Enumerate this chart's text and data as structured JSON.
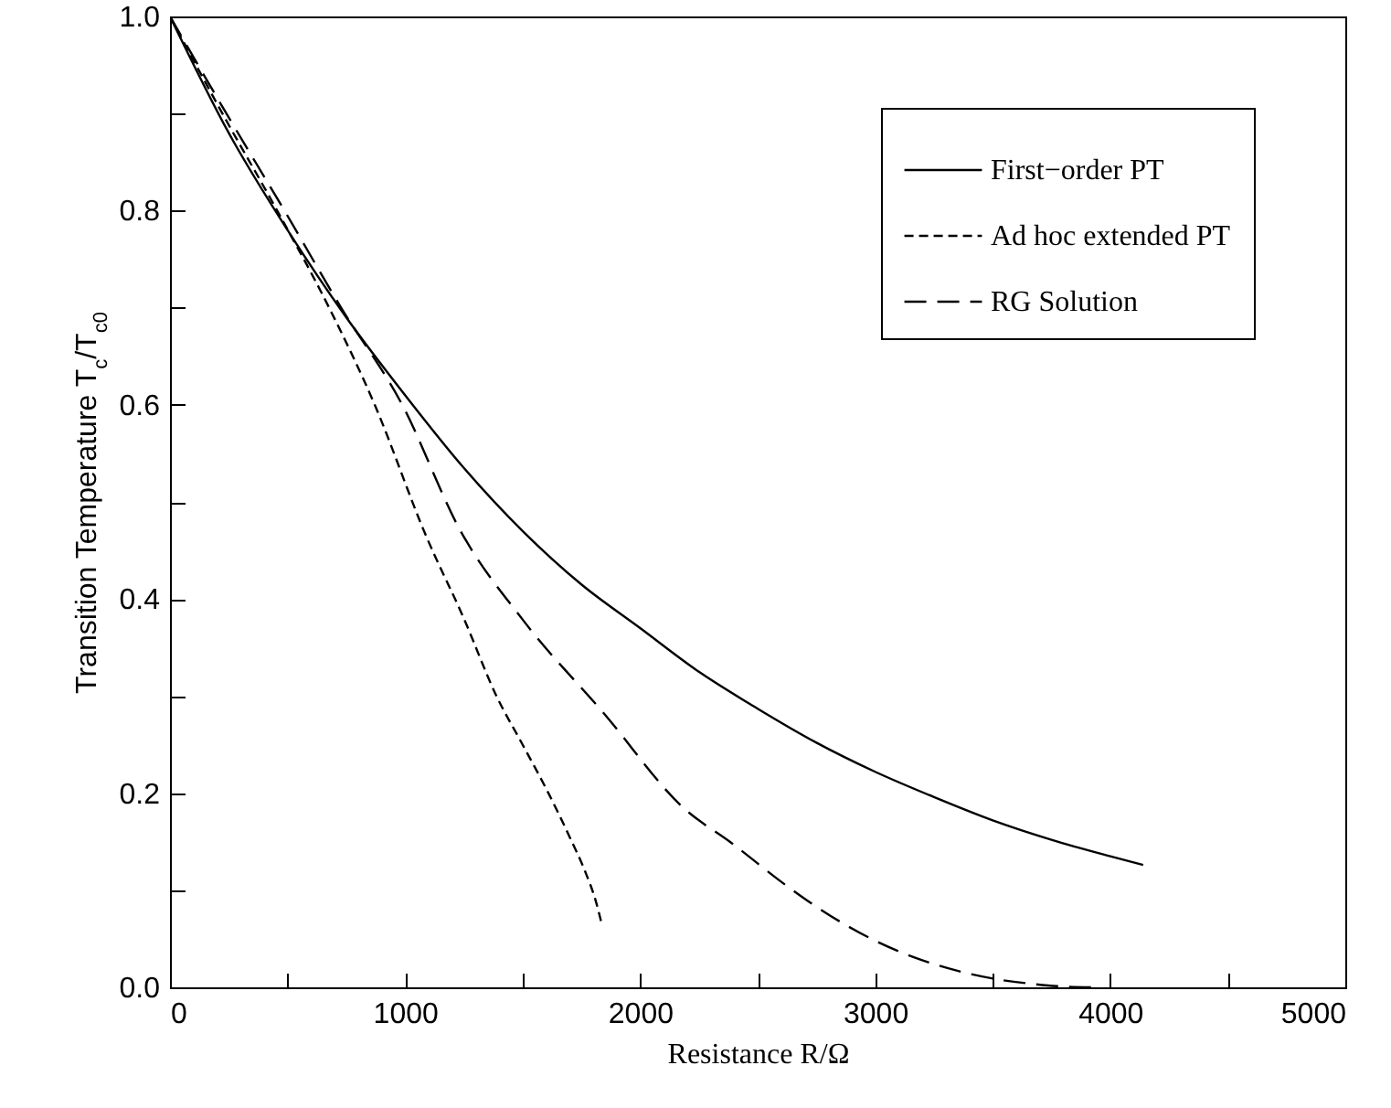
{
  "chart_data": {
    "type": "line",
    "xlabel": "Resistance R/Ω",
    "ylabel": "Transition Temperature T$_{c}$/T$_{c0}$",
    "xlim": [
      0,
      5000
    ],
    "ylim": [
      0,
      1
    ],
    "xticks": [
      0,
      {
        "value": 500,
        "label": null
      },
      1000,
      {
        "value": 1500,
        "label": null
      },
      2000,
      {
        "value": 2500,
        "label": null
      },
      3000,
      {
        "value": 3500,
        "label": null
      },
      4000,
      {
        "value": 4500,
        "label": null
      },
      5000
    ],
    "yticks": [
      {
        "value": 0,
        "label": "0.0"
      },
      {
        "value": 0.1,
        "label": null
      },
      {
        "value": 0.2,
        "label": "0.2"
      },
      {
        "value": 0.3,
        "label": null
      },
      {
        "value": 0.4,
        "label": "0.4"
      },
      {
        "value": 0.5,
        "label": null
      },
      {
        "value": 0.6,
        "label": "0.6"
      },
      {
        "value": 0.7,
        "label": null
      },
      {
        "value": 0.8,
        "label": "0.8"
      },
      {
        "value": 0.9,
        "label": null
      },
      {
        "value": 1,
        "label": "1.0"
      }
    ],
    "legend": "top right",
    "marker": "none",
    "series": [
      {
        "name": "First−order PT",
        "color": "#000000",
        "line_style": "solid",
        "x": [
          0,
          250,
          500,
          750,
          1000,
          1250,
          1500,
          1750,
          2000,
          2250,
          2500,
          2750,
          3000,
          3250,
          3500,
          3750,
          4000,
          4140
        ],
        "values": [
          1,
          0.88,
          0.78,
          0.69,
          0.61,
          0.535,
          0.47,
          0.415,
          0.37,
          0.325,
          0.287,
          0.252,
          0.222,
          0.196,
          0.172,
          0.152,
          0.135,
          0.126
        ]
      },
      {
        "name": "Ad hoc extended PT",
        "color": "#000000",
        "line_style": "dashed",
        "x": [
          0,
          223,
          456,
          677,
          871,
          1091,
          1250,
          1389,
          1500,
          1610,
          1700,
          1765,
          1810,
          1838
        ],
        "values": [
          1,
          0.9,
          0.8,
          0.7,
          0.6,
          0.464,
          0.38,
          0.3,
          0.25,
          0.2,
          0.155,
          0.12,
          0.09,
          0.064
        ]
      },
      {
        "name": "RG Solution",
        "color": "#000000",
        "line_style": "dashed",
        "x": [
          0,
          240,
          487,
          728,
          988,
          1234,
          1506,
          1843,
          2193,
          2387,
          2621,
          2750,
          3000,
          3165,
          3350,
          3502,
          3650,
          3787,
          3960
        ],
        "values": [
          1,
          0.9,
          0.8,
          0.7,
          0.6,
          0.471,
          0.377,
          0.283,
          0.183,
          0.149,
          0.105,
          0.083,
          0.048,
          0.031,
          0.017,
          0.009,
          0.004,
          0.001,
          0
        ]
      }
    ]
  }
}
